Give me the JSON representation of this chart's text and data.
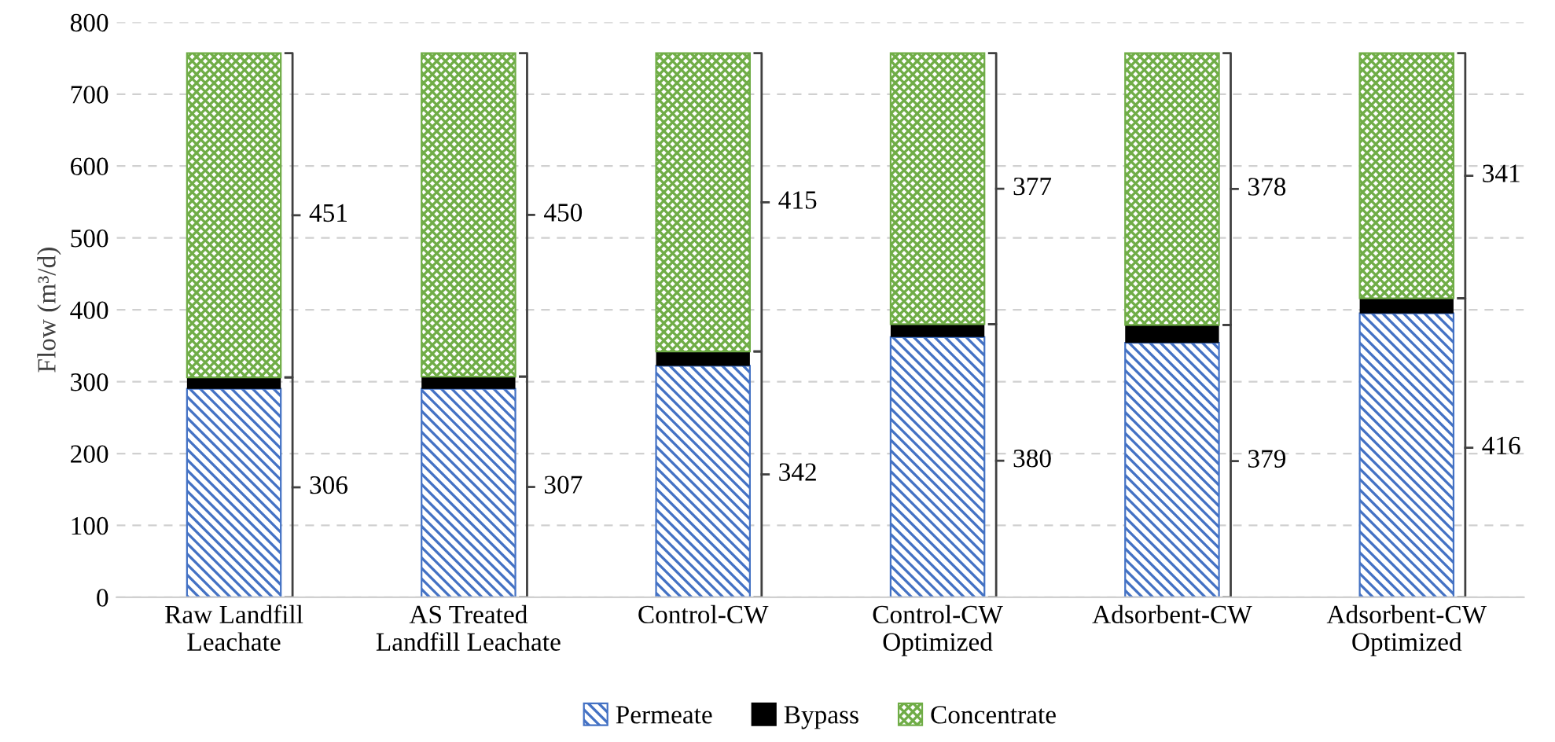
{
  "chart_data": {
    "type": "bar",
    "stacked": true,
    "ylabel": "Flow (m³/d)",
    "categories": [
      "Raw Landfill\nLeachate",
      "AS Treated\nLandfill Leachate",
      "Control-CW",
      "Control-CW\nOptimized",
      "Adsorbent-CW",
      "Adsorbent-CW\nOptimized"
    ],
    "series": [
      {
        "name": "Permeate",
        "color": "#4472c4",
        "values": [
          290,
          290,
          322,
          362,
          354,
          395
        ]
      },
      {
        "name": "Bypass",
        "color": "#000000",
        "values": [
          16,
          17,
          20,
          18,
          25,
          21
        ]
      },
      {
        "name": "Concentrate",
        "color": "#70ad47",
        "values": [
          451,
          450,
          415,
          377,
          378,
          341
        ]
      }
    ],
    "annotations": [
      "306",
      "451",
      "307",
      "450",
      "342",
      "415",
      "380",
      "377",
      "379",
      "378",
      "416",
      "341"
    ],
    "ylim": [
      0,
      800
    ],
    "yticks": [
      0,
      100,
      200,
      300,
      400,
      500,
      600,
      700,
      800
    ],
    "grid": "y",
    "legend": "bottom"
  }
}
